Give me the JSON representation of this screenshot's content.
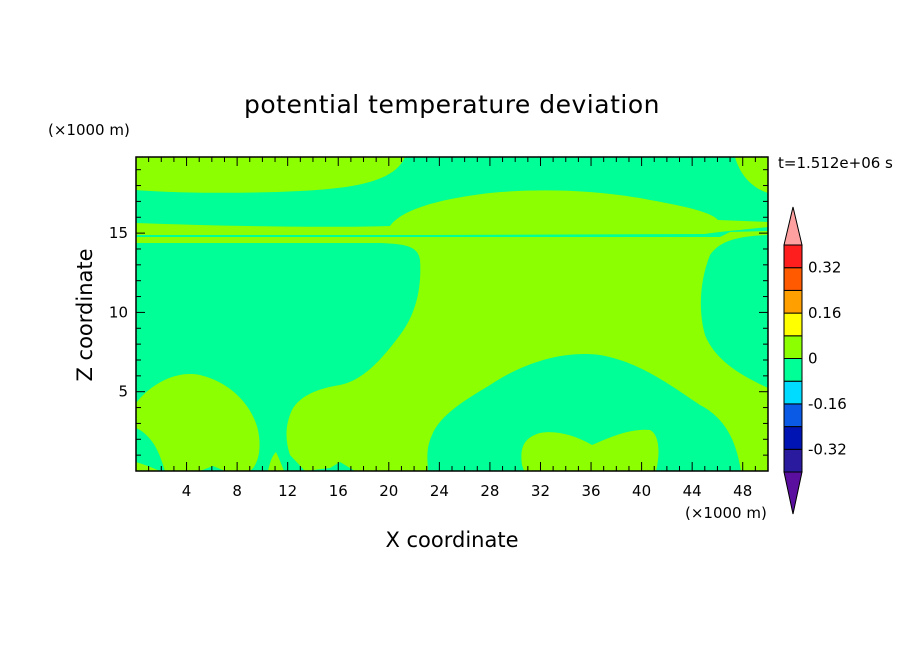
{
  "chart_data": {
    "type": "heatmap",
    "title": "potential temperature deviation",
    "xlabel": "X coordinate",
    "ylabel": "Z coordinate",
    "x_unit": "(×1000 m)",
    "y_unit": "(×1000 m)",
    "time_label": "t=1.512e+06 s",
    "xlim": [
      0,
      50
    ],
    "ylim": [
      0,
      19.8
    ],
    "x_ticks": [
      4,
      8,
      12,
      16,
      20,
      24,
      28,
      32,
      36,
      40,
      44,
      48
    ],
    "y_ticks": [
      5,
      10,
      15
    ],
    "colorbar": {
      "levels": [
        -0.4,
        -0.32,
        -0.24,
        -0.16,
        -0.08,
        0,
        0.08,
        0.16,
        0.24,
        0.32,
        0.4
      ],
      "colors": [
        "#5a0f9e",
        "#2a1a9e",
        "#0014b4",
        "#0a5ae6",
        "#00dcff",
        "#00ff96",
        "#8cff00",
        "#ffff00",
        "#ffa000",
        "#ff5a00",
        "#ff1e1e",
        "#ffa0a0"
      ],
      "labels": [
        "-0.32",
        "-0.16",
        "0",
        "0.16",
        "0.32"
      ],
      "label_values": [
        -0.32,
        -0.16,
        0,
        0.16,
        0.32
      ],
      "under_color": "#5a0f9e",
      "over_color": "#ffa0a0"
    },
    "field_colors": {
      "positive": "#8cff00",
      "negative": "#00ff96"
    },
    "grid": false
  }
}
